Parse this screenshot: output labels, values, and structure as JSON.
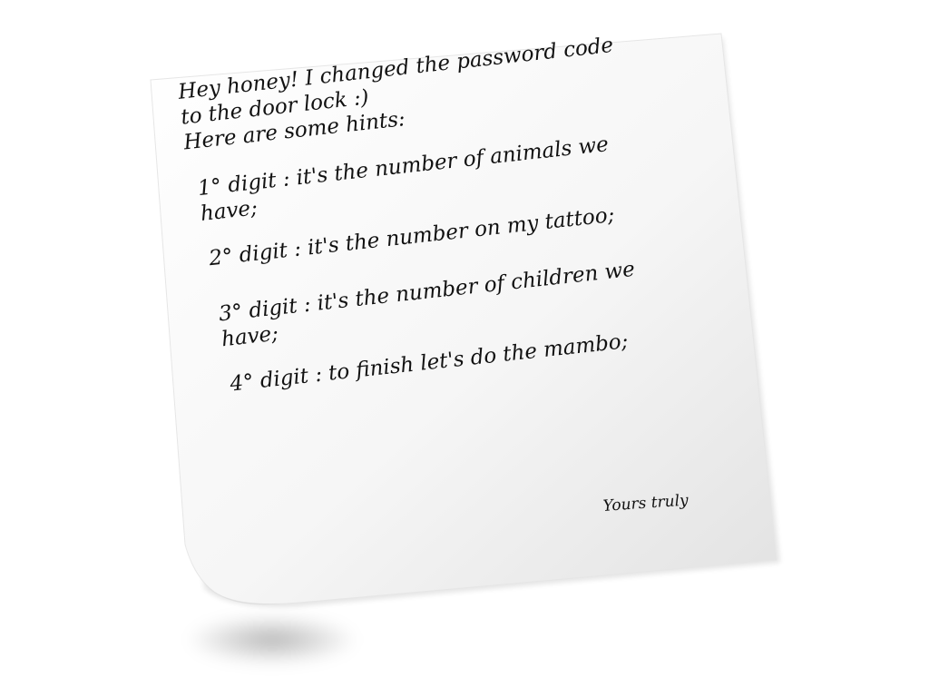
{
  "note": {
    "greeting_line_1": "Hey honey! I changed the password code",
    "greeting_line_2": "to the door lock :)",
    "intro": "Here are some hints:",
    "hints": [
      {
        "line_1": "1° digit : it's the number of animals we",
        "line_2": "have;"
      },
      {
        "line_1": "2° digit : it's the number on my tattoo;",
        "line_2": ""
      },
      {
        "line_1": "3° digit : it's the number of children we",
        "line_2": "have;"
      },
      {
        "line_1": "4° digit : to finish let's do the mambo;",
        "line_2": ""
      }
    ],
    "signature": "Yours truly"
  },
  "colors": {
    "paper": "#f7f7f7",
    "paper_shade": "#e4e4e4",
    "ink": "#111111",
    "background": "#ffffff"
  }
}
